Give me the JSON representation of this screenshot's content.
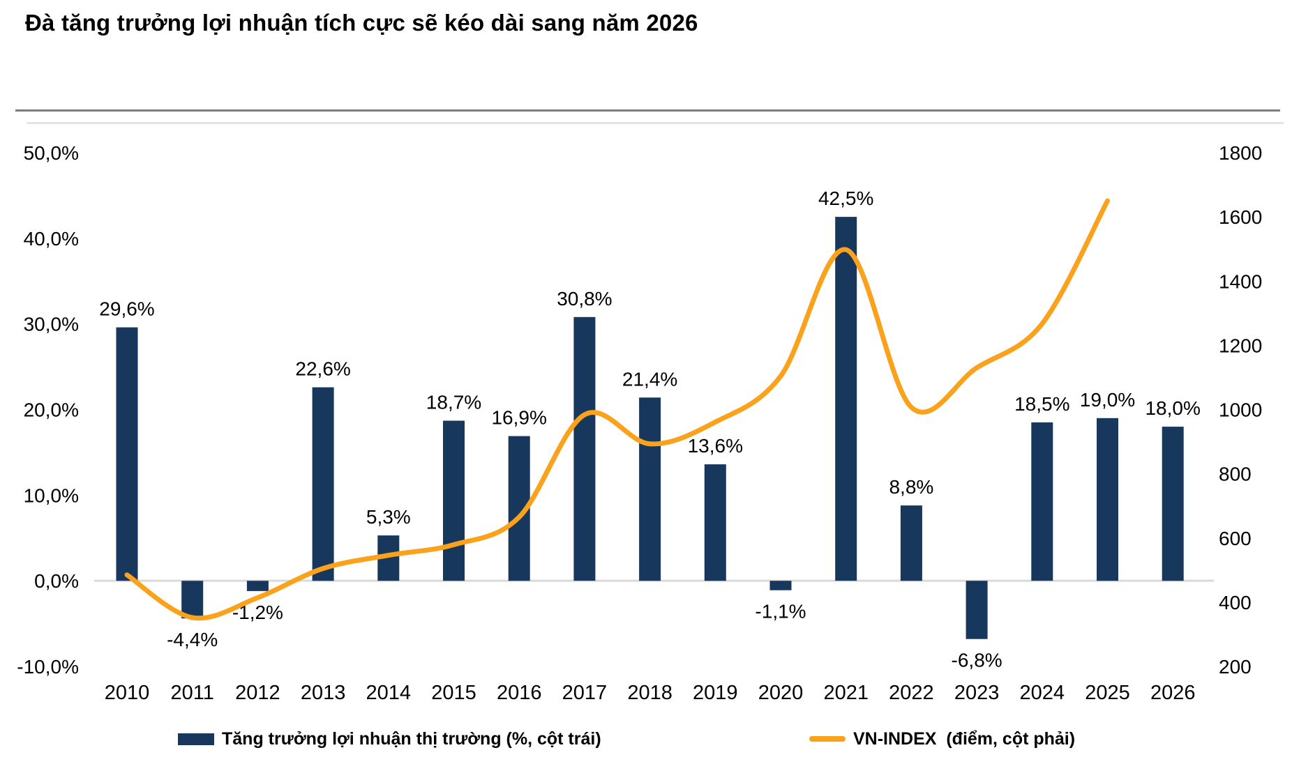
{
  "title": "Đà tăng trưởng lợi nhuận tích cực sẽ kéo dài sang năm 2026",
  "colors": {
    "bar": "#17375d",
    "line": "#faa21c",
    "zero_gridline": "#d9d9d9",
    "divider_dark": "#7b7b7b",
    "divider_light": "#e4e4e4",
    "text": "#000000"
  },
  "legend": {
    "items": [
      {
        "label": "Tăng trưởng lợi nhuận thị trường (%, cột trái)",
        "type": "bar"
      },
      {
        "label": "VN-INDEX  (điểm, cột phải)",
        "type": "line"
      }
    ]
  },
  "chart_data": {
    "type": "combo",
    "categories": [
      "2010",
      "2011",
      "2012",
      "2013",
      "2014",
      "2015",
      "2016",
      "2017",
      "2018",
      "2019",
      "2020",
      "2021",
      "2022",
      "2023",
      "2024",
      "2025",
      "2026"
    ],
    "series": [
      {
        "name": "Tăng trưởng lợi nhuận thị trường (%, cột trái)",
        "type": "bar",
        "axis": "left",
        "values": [
          29.6,
          -4.4,
          -1.2,
          22.6,
          5.3,
          18.7,
          16.9,
          30.8,
          21.4,
          13.6,
          -1.1,
          42.5,
          8.8,
          -6.8,
          18.5,
          19.0,
          18.0
        ],
        "labels": [
          "29,6%",
          "-4,4%",
          "-1,2%",
          "22,6%",
          "5,3%",
          "18,7%",
          "16,9%",
          "30,8%",
          "21,4%",
          "13,6%",
          "-1,1%",
          "42,5%",
          "8,8%",
          "-6,8%",
          "18,5%",
          "19,0%",
          "18,0%"
        ]
      },
      {
        "name": "VN-INDEX (điểm, cột phải)",
        "type": "line",
        "axis": "right",
        "values": [
          485,
          352,
          414,
          505,
          546,
          579,
          665,
          984,
          893,
          961,
          1104,
          1498,
          1007,
          1130,
          1267,
          1650
        ],
        "note": "line spans 2010 through 2025 only"
      }
    ],
    "left_axis": {
      "min": -10,
      "max": 50,
      "step": 10,
      "tick_labels": [
        "50,0%",
        "40,0%",
        "30,0%",
        "20,0%",
        "10,0%",
        "0,0%",
        "-10,0%"
      ]
    },
    "right_axis": {
      "min": 200,
      "max": 1800,
      "step": 200,
      "tick_labels": [
        "1800",
        "1600",
        "1400",
        "1200",
        "1000",
        "800",
        "600",
        "400",
        "200"
      ]
    },
    "grid": "only zero line visible",
    "legend_position": "bottom"
  }
}
